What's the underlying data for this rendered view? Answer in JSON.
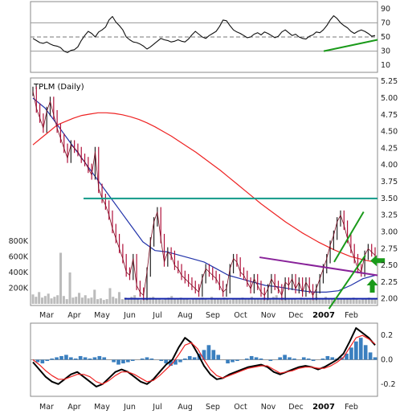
{
  "chart_data": [
    {
      "type": "line",
      "title": "",
      "ylim": [
        0,
        100
      ],
      "y_ticks": [
        10,
        30,
        50,
        70,
        90
      ],
      "reference_lines": [
        30,
        50,
        70
      ],
      "series": [
        {
          "values": [
            48,
            45,
            42,
            41,
            43,
            40,
            38,
            37,
            35,
            30,
            28,
            31,
            32,
            36,
            45,
            52,
            58,
            55,
            50,
            57,
            60,
            64,
            74,
            79,
            71,
            66,
            60,
            50,
            46,
            43,
            42,
            40,
            37,
            33,
            36,
            40,
            44,
            48,
            46,
            45,
            43,
            44,
            46,
            44,
            43,
            47,
            53,
            58,
            54,
            50,
            48,
            52,
            55,
            58,
            65,
            74,
            73,
            66,
            60,
            57,
            55,
            52,
            49,
            50,
            54,
            56,
            53,
            57,
            55,
            52,
            49,
            51,
            57,
            60,
            56,
            52,
            54,
            50,
            48,
            47,
            51,
            53,
            57,
            56,
            60,
            66,
            74,
            80,
            76,
            70,
            66,
            63,
            58,
            55,
            58,
            60,
            58,
            55,
            51,
            52
          ]
        }
      ],
      "annotations": [
        {
          "kind": "trendline",
          "from": [
            0.845,
            30
          ],
          "to": [
            1.0,
            46
          ]
        }
      ]
    },
    {
      "type": "line",
      "title": "TPLM (Daily)",
      "x_ticks": [
        "Mar",
        "Apr",
        "May",
        "Jun",
        "Jul",
        "Aug",
        "Sep",
        "Oct",
        "Nov",
        "Dec",
        "2007",
        "Feb"
      ],
      "ylim": [
        1.9,
        5.3
      ],
      "y_ticks": [
        "5.25",
        "5.00",
        "4.75",
        "4.50",
        "4.25",
        "4.00",
        "3.75",
        "3.50",
        "3.25",
        "3.00",
        "2.75",
        "2.50",
        "2.25",
        "2.00"
      ],
      "series": [
        {
          "name": "",
          "values": [
            5.1,
            4.85,
            4.7,
            4.55,
            4.8,
            4.95,
            4.75,
            4.55,
            4.4,
            4.25,
            4.1,
            4.3,
            4.25,
            4.2,
            4.1,
            4.05,
            3.95,
            3.85,
            4.2,
            3.65,
            3.5,
            3.4,
            3.25,
            3.05,
            2.9,
            2.75,
            2.6,
            2.4,
            2.35,
            2.6,
            2.2,
            2.1,
            2.05,
            2.4,
            2.85,
            3.15,
            3.3,
            2.9,
            2.55,
            2.7,
            2.65,
            2.5,
            2.45,
            2.35,
            2.3,
            2.25,
            2.2,
            2.15,
            2.1,
            2.3,
            2.45,
            2.4,
            2.35,
            2.3,
            2.2,
            2.1,
            2.15,
            2.45,
            2.6,
            2.55,
            2.4,
            2.35,
            2.25,
            2.15,
            2.3,
            2.2,
            2.1,
            2.05,
            2.15,
            2.3,
            2.2,
            2.15,
            2.05,
            2.25,
            2.2,
            2.3,
            2.15,
            2.25,
            2.1,
            2.25,
            2.15,
            2.05,
            2.15,
            2.3,
            2.45,
            2.6,
            2.8,
            2.95,
            3.15,
            3.25,
            3.1,
            2.9,
            2.75,
            2.6,
            2.45,
            2.4,
            2.65,
            2.75,
            2.7,
            2.65
          ]
        },
        {
          "name": "",
          "color": "#ee2222",
          "values": [
            4.3,
            4.4,
            4.5,
            4.6,
            4.65,
            4.7,
            4.74,
            4.76,
            4.78,
            4.78,
            4.77,
            4.75,
            4.72,
            4.68,
            4.63,
            4.57,
            4.5,
            4.43,
            4.35,
            4.27,
            4.19,
            4.1,
            4.01,
            3.92,
            3.82,
            3.72,
            3.62,
            3.52,
            3.42,
            3.33,
            3.24,
            3.15,
            3.07,
            2.99,
            2.92,
            2.85,
            2.79,
            2.73,
            2.68,
            2.63,
            2.6,
            2.57,
            2.55
          ]
        },
        {
          "name": "",
          "color": "#2233aa",
          "values": [
            5.0,
            4.85,
            4.6,
            4.35,
            4.1,
            3.85,
            3.6,
            3.35,
            3.1,
            2.85,
            2.72,
            2.7,
            2.65,
            2.6,
            2.55,
            2.45,
            2.35,
            2.3,
            2.25,
            2.2,
            2.18,
            2.15,
            2.12,
            2.1,
            2.1,
            2.12,
            2.2,
            2.3,
            2.35
          ]
        }
      ],
      "annotations": [
        {
          "kind": "horizontal",
          "y": 3.5,
          "color": "#119988"
        },
        {
          "kind": "horizontal",
          "y": 2.0,
          "color": "#1122aa"
        },
        {
          "kind": "trendline",
          "color": "#882299",
          "from": [
            0.66,
            2.62
          ],
          "to": [
            1.0,
            2.35
          ]
        },
        {
          "kind": "trendline",
          "color": "#1a9a1a",
          "from": [
            0.86,
            1.85
          ],
          "to": [
            0.965,
            2.65
          ]
        },
        {
          "kind": "trendline",
          "color": "#1a9a1a",
          "from": [
            0.875,
            2.55
          ],
          "to": [
            0.96,
            3.3
          ]
        },
        {
          "kind": "arrow",
          "direction": "left",
          "color": "#1a9a1a",
          "at": [
            0.998,
            2.57
          ]
        },
        {
          "kind": "arrow",
          "direction": "up",
          "color": "#1a9a1a",
          "at": [
            0.985,
            2.2
          ]
        }
      ]
    },
    {
      "type": "bar",
      "title": "",
      "ylim": [
        0,
        900000
      ],
      "y_ticks": [
        "800K",
        "600K",
        "400K",
        "200K"
      ],
      "values": [
        120000,
        90000,
        150000,
        80000,
        100000,
        130000,
        70000,
        90000,
        110000,
        650000,
        100000,
        60000,
        400000,
        80000,
        90000,
        140000,
        80000,
        110000,
        70000,
        80000,
        180000,
        60000,
        70000,
        50000,
        60000,
        200000,
        90000,
        70000,
        150000,
        60000,
        80000,
        70000,
        90000,
        110000,
        60000,
        50000,
        70000,
        60000,
        80000,
        90000,
        60000,
        70000,
        50000,
        60000,
        80000,
        100000,
        60000,
        70000,
        80000,
        60000,
        70000,
        50000,
        60000,
        70000,
        60000,
        80000,
        60000,
        50000,
        90000,
        60000,
        70000,
        60000,
        80000,
        60000,
        50000,
        70000,
        60000,
        60000,
        80000,
        60000,
        70000,
        90000,
        60000,
        70000,
        60000,
        80000,
        70000,
        60000,
        90000,
        110000,
        60000,
        80000,
        70000,
        60000,
        70000,
        60000,
        50000,
        80000,
        70000,
        60000,
        60000,
        70000,
        80000,
        60000,
        70000,
        90000,
        60000,
        70000,
        80000,
        60000,
        70000,
        60000,
        60000,
        70000,
        80000,
        60000,
        50000,
        70000,
        60000,
        80000,
        70000,
        60000
      ]
    },
    {
      "type": "line",
      "title": "",
      "x_ticks": [
        "Mar",
        "Apr",
        "May",
        "Jun",
        "Jul",
        "Aug",
        "Sep",
        "Oct",
        "Nov",
        "Dec",
        "2007",
        "Feb"
      ],
      "ylim": [
        -0.3,
        0.3
      ],
      "y_ticks": [
        "0.2",
        "0.0",
        "-0.2"
      ],
      "histogram": [
        0.0,
        -0.02,
        -0.03,
        -0.01,
        0.01,
        0.02,
        0.03,
        0.04,
        0.02,
        0.01,
        0.03,
        0.02,
        0.01,
        0.02,
        0.03,
        0.02,
        0.0,
        -0.02,
        -0.04,
        -0.03,
        -0.02,
        -0.01,
        0.0,
        0.01,
        0.02,
        0.01,
        0.0,
        -0.01,
        -0.03,
        -0.05,
        -0.04,
        -0.02,
        0.01,
        0.03,
        0.02,
        0.05,
        0.08,
        0.12,
        0.08,
        0.04,
        0.0,
        -0.03,
        -0.02,
        -0.01,
        0.0,
        0.01,
        0.03,
        0.02,
        0.01,
        0.0,
        -0.01,
        0.0,
        0.02,
        0.04,
        0.02,
        0.01,
        0.0,
        0.02,
        0.01,
        -0.01,
        0.0,
        0.01,
        0.03,
        0.02,
        0.01,
        0.02,
        0.05,
        0.1,
        0.15,
        0.18,
        0.12,
        0.06,
        0.02
      ],
      "series": [
        {
          "name": "",
          "color": "#000000",
          "values": [
            -0.02,
            -0.08,
            -0.14,
            -0.18,
            -0.2,
            -0.16,
            -0.12,
            -0.1,
            -0.14,
            -0.18,
            -0.22,
            -0.2,
            -0.15,
            -0.1,
            -0.08,
            -0.1,
            -0.14,
            -0.18,
            -0.2,
            -0.16,
            -0.1,
            -0.04,
            0.0,
            0.1,
            0.18,
            0.14,
            0.05,
            -0.05,
            -0.12,
            -0.16,
            -0.15,
            -0.12,
            -0.1,
            -0.08,
            -0.06,
            -0.05,
            -0.04,
            -0.06,
            -0.1,
            -0.12,
            -0.1,
            -0.08,
            -0.06,
            -0.05,
            -0.06,
            -0.08,
            -0.06,
            -0.03,
            0.0,
            0.05,
            0.15,
            0.26,
            0.22,
            0.18,
            0.12
          ]
        },
        {
          "name": "",
          "color": "#ee2222",
          "values": [
            0.0,
            -0.04,
            -0.09,
            -0.13,
            -0.16,
            -0.16,
            -0.14,
            -0.12,
            -0.12,
            -0.14,
            -0.18,
            -0.2,
            -0.17,
            -0.13,
            -0.1,
            -0.1,
            -0.12,
            -0.15,
            -0.18,
            -0.17,
            -0.13,
            -0.08,
            -0.03,
            0.04,
            0.12,
            0.14,
            0.09,
            0.0,
            -0.08,
            -0.13,
            -0.15,
            -0.13,
            -0.11,
            -0.09,
            -0.07,
            -0.06,
            -0.05,
            -0.05,
            -0.08,
            -0.11,
            -0.1,
            -0.09,
            -0.07,
            -0.06,
            -0.06,
            -0.07,
            -0.07,
            -0.05,
            -0.02,
            0.02,
            0.1,
            0.18,
            0.2,
            0.17,
            0.13
          ]
        }
      ]
    }
  ]
}
